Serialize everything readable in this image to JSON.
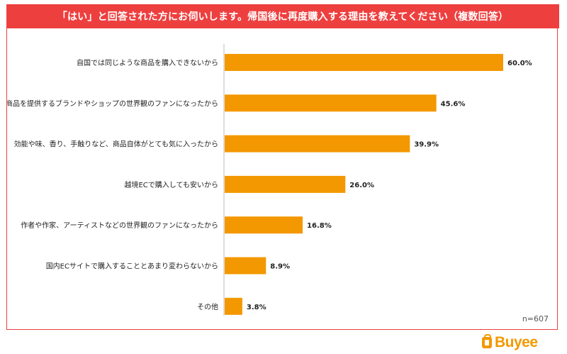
{
  "header": {
    "title": "「はい」と回答された方にお伺いします。帰国後に再度購入する理由を教えてください（複数回答）"
  },
  "sample_size": "n=607",
  "brand": {
    "name": "Buyee",
    "color": "#f39800"
  },
  "colors": {
    "header_bg": "#ee3f3f",
    "bar": "#f39800"
  },
  "chart_data": {
    "type": "bar",
    "orientation": "horizontal",
    "title": "「はい」と回答された方にお伺いします。帰国後に再度購入する理由を教えてください（複数回答）",
    "categories": [
      "自国では同じような商品を購入できないから",
      "商品を提供するブランドやショップの世界観のファンになったから",
      "効能や味、香り、手触りなど、商品自体がとても気に入ったから",
      "越境ECで購入しても安いから",
      "作者や作家、アーティストなどの世界観のファンになったから",
      "国内ECサイトで購入することとあまり変わらないから",
      "その他"
    ],
    "values": [
      60.0,
      45.6,
      39.9,
      26.0,
      16.8,
      8.9,
      3.8
    ],
    "value_labels": [
      "60.0%",
      "45.6%",
      "39.9%",
      "26.0%",
      "16.8%",
      "8.9%",
      "3.8%"
    ],
    "unit": "%",
    "xlim": [
      0,
      60
    ],
    "grid": false,
    "legend": "none"
  }
}
